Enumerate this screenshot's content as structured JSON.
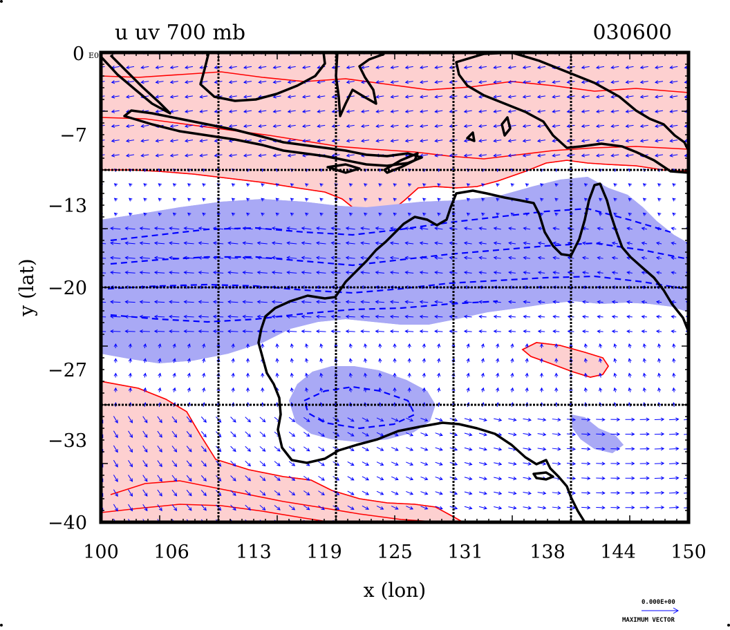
{
  "chart_data": {
    "type": "map",
    "title_left": "u uv 700 mb",
    "title_right": "030600",
    "corner_label": "0",
    "corner_small": "E0",
    "xlabel": "x (lon)",
    "ylabel": "y (lat)",
    "xlim": [
      100,
      150
    ],
    "ylim": [
      -40,
      0
    ],
    "x_ticks": [
      100,
      106,
      113,
      119,
      125,
      131,
      138,
      144,
      150
    ],
    "y_ticks": [
      -7,
      -13,
      -20,
      -27,
      -33,
      -40
    ],
    "grid_lon": [
      110,
      120,
      130,
      140
    ],
    "grid_lat": [
      -10,
      -20,
      -30
    ],
    "max_vector_value": "0.000E+00",
    "max_vector_label": "MAXIMUM VECTOR",
    "colors": {
      "positive_fill": "#fdd0d0",
      "positive_line": "#ff0000",
      "negative_fill": "#a9a9f5",
      "negative_line": "#0000ff",
      "vector": "#0000ff",
      "coast": "#000000"
    }
  }
}
